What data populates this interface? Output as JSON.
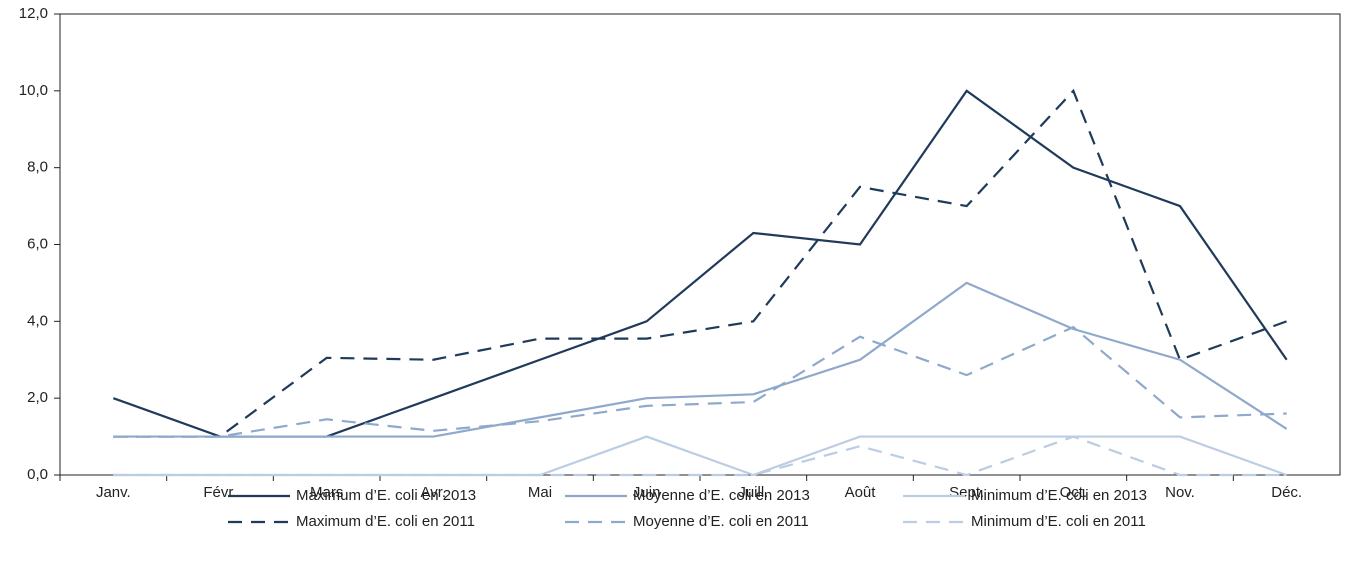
{
  "chart_data": {
    "type": "line",
    "categories": [
      "Janv.",
      "Févr.",
      "Mars",
      "Avr.",
      "Mai",
      "Juin",
      "Juill.",
      "Août",
      "Sept.",
      "Oct.",
      "Nov.",
      "Déc."
    ],
    "ylim": [
      0,
      12
    ],
    "yticks": [
      {
        "value": 0,
        "label": "0,0"
      },
      {
        "value": 2,
        "label": "2,0"
      },
      {
        "value": 4,
        "label": "4,0"
      },
      {
        "value": 6,
        "label": "6,0"
      },
      {
        "value": 8,
        "label": "8,0"
      },
      {
        "value": 10,
        "label": "10,0"
      },
      {
        "value": 12,
        "label": "12,0"
      }
    ],
    "series": [
      {
        "name": "Maximum d’E. coli en 2013",
        "color": "#1f3a5a",
        "dashed": false,
        "values": [
          2,
          1,
          1,
          2,
          3,
          4,
          6.3,
          6,
          10,
          8,
          7,
          3
        ]
      },
      {
        "name": "Moyenne d’E. coli en 2013",
        "color": "#8fa9cc",
        "dashed": false,
        "values": [
          1,
          1,
          1,
          1,
          1.5,
          2,
          2.1,
          3,
          5,
          3.8,
          3,
          1.2
        ]
      },
      {
        "name": "Minimum d’E. coli en 2013",
        "color": "#bccde3",
        "dashed": false,
        "values": [
          0,
          0,
          0,
          0,
          0,
          1,
          0,
          1,
          1,
          1,
          1,
          0
        ]
      },
      {
        "name": "Maximum d’E. coli en 2011",
        "color": "#1f3a5a",
        "dashed": true,
        "values": [
          1,
          1,
          3.05,
          3,
          3.55,
          3.55,
          4,
          7.5,
          7,
          10,
          3,
          4
        ]
      },
      {
        "name": "Moyenne d’E. coli en 2011",
        "color": "#8fa9cc",
        "dashed": true,
        "values": [
          1,
          1,
          1.45,
          1.15,
          1.4,
          1.8,
          1.9,
          3.6,
          2.6,
          3.85,
          1.5,
          1.6
        ]
      },
      {
        "name": "Minimum d’E. coli en 2011",
        "color": "#bccde3",
        "dashed": true,
        "values": [
          0,
          0,
          0,
          0,
          0,
          0,
          0,
          0.75,
          0,
          1,
          0,
          0
        ]
      }
    ]
  }
}
